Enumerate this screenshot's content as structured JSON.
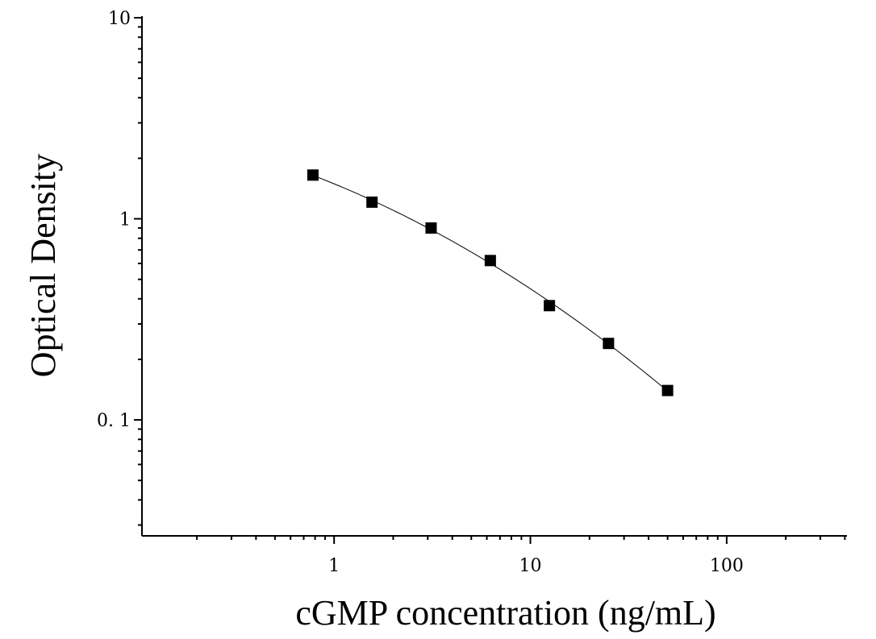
{
  "chart_data": {
    "type": "scatter",
    "title": "",
    "xlabel": "cGMP concentration (ng/mL)",
    "ylabel": "Optical Density",
    "x_scale": "log",
    "y_scale": "log",
    "xlim": [
      0.105,
      410
    ],
    "ylim": [
      0.0265,
      10
    ],
    "x_ticks": [
      {
        "value": 1,
        "label": "1"
      },
      {
        "value": 10,
        "label": "10"
      },
      {
        "value": 100,
        "label": "100"
      }
    ],
    "y_ticks": [
      {
        "value": 0.1,
        "label": "0. 1"
      },
      {
        "value": 1,
        "label": "1"
      },
      {
        "value": 10,
        "label": "10"
      }
    ],
    "grid": false,
    "legend": "none",
    "marker": "square",
    "marker_color": "#000000",
    "line_color": "#000000",
    "series": [
      {
        "x": [
          0.78,
          1.56,
          3.12,
          6.25,
          12.5,
          25,
          50
        ],
        "y": [
          1.65,
          1.21,
          0.9,
          0.62,
          0.37,
          0.24,
          0.14
        ]
      }
    ]
  }
}
